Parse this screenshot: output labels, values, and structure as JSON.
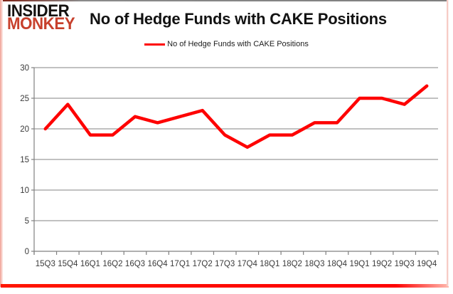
{
  "header": {
    "logo_line1": "INSIDER",
    "logo_line2": "MONKEY",
    "title": "No of Hedge Funds with CAKE Positions"
  },
  "legend": {
    "label": "No of Hedge Funds with CAKE Positions"
  },
  "chart_data": {
    "type": "line",
    "title": "No of Hedge Funds with CAKE Positions",
    "categories": [
      "15Q3",
      "15Q4",
      "16Q1",
      "16Q2",
      "16Q3",
      "16Q4",
      "17Q1",
      "17Q2",
      "17Q3",
      "17Q4",
      "18Q1",
      "18Q2",
      "18Q3",
      "18Q4",
      "19Q1",
      "19Q2",
      "19Q3",
      "19Q4"
    ],
    "values": [
      20,
      24,
      19,
      19,
      22,
      21,
      22,
      23,
      19,
      17,
      19,
      19,
      21,
      21,
      25,
      25,
      24,
      27
    ],
    "xlabel": "",
    "ylabel": "",
    "ylim": [
      0,
      30
    ],
    "yticks": [
      0,
      5,
      10,
      15,
      20,
      25,
      30
    ],
    "grid": true,
    "legend_position": "top"
  },
  "colors": {
    "series_line": "#fe0000",
    "legend_marker": "#fe0000",
    "logo_red": "#c7402c",
    "gridline": "#9c9c9c",
    "axis": "#808080",
    "tick_label": "#3a3a3a"
  }
}
